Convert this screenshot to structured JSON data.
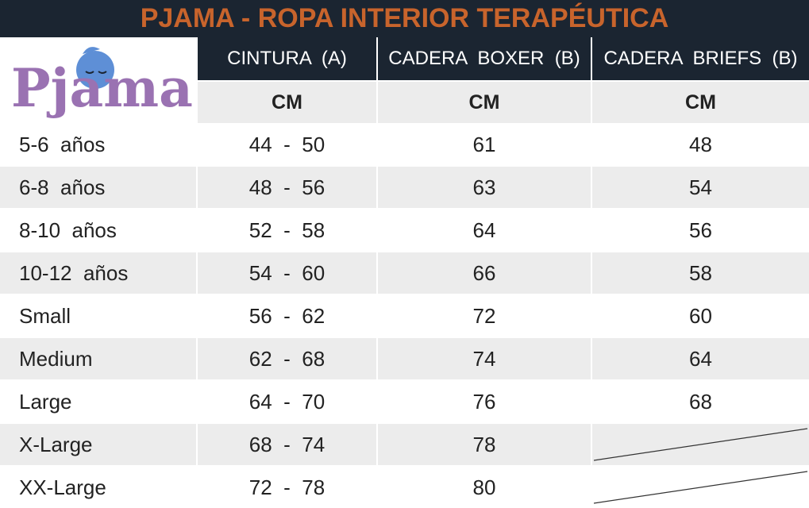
{
  "header": {
    "title": "PJAMA - ROPA INTERIOR TERAPÉUTICA"
  },
  "logo": {
    "text": "Pjama"
  },
  "table": {
    "columns": [
      "CINTURA  (A)",
      "CADERA  BOXER  (B)",
      "CADERA  BRIEFS  (B)"
    ],
    "units": [
      "CM",
      "CM",
      "CM"
    ],
    "rows": [
      [
        "5-6  años",
        "44  -  50",
        61,
        48
      ],
      [
        "6-8  años",
        "48  -  56",
        63,
        54
      ],
      [
        "8-10  años",
        "52  -  58",
        64,
        56
      ],
      [
        "10-12  años",
        "54  -  60",
        66,
        58
      ],
      [
        "Small",
        "56  -  62",
        72,
        60
      ],
      [
        "Medium",
        "62  -  68",
        74,
        64
      ],
      [
        "Large",
        "64  -  70",
        76,
        68
      ],
      [
        "X-Large",
        "68  -  74",
        78,
        null
      ],
      [
        "XX-Large",
        "72  -  78",
        80,
        null
      ]
    ]
  }
}
